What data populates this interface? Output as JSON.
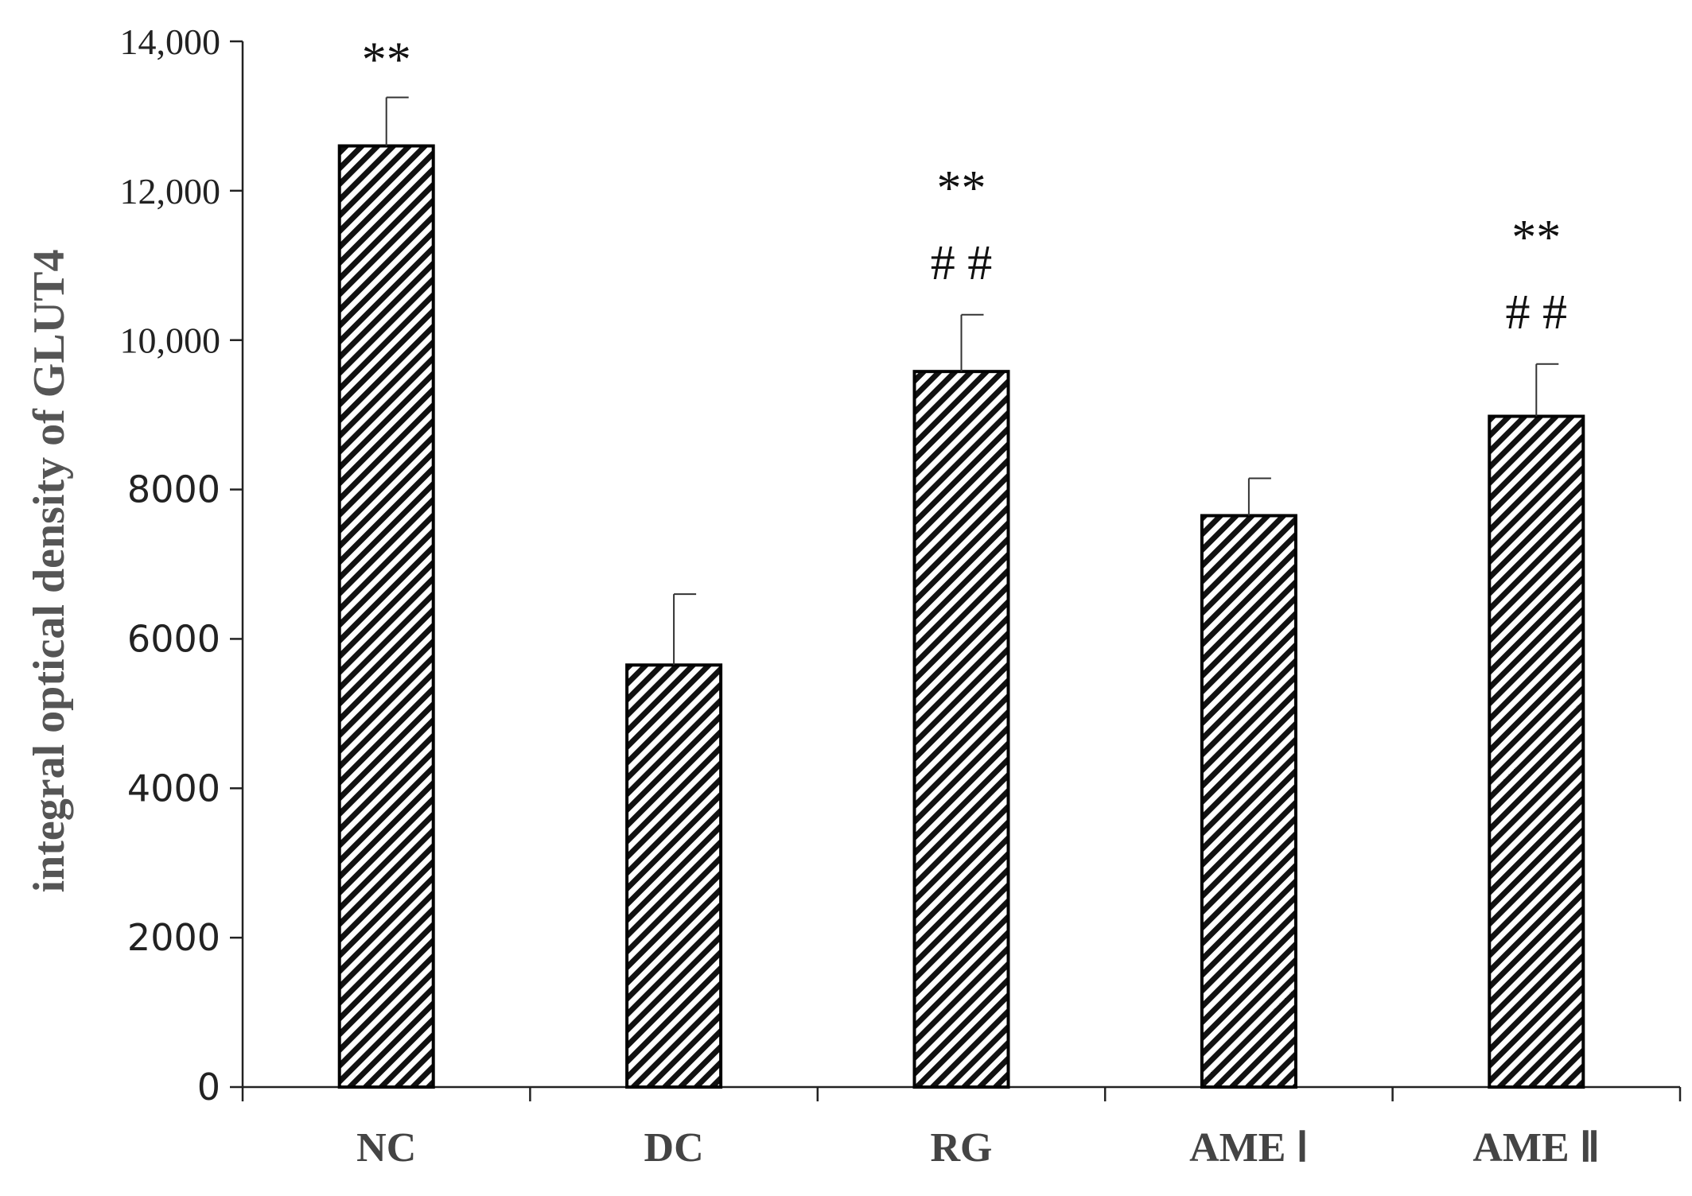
{
  "chart_data": {
    "type": "bar",
    "title": "",
    "xlabel": "",
    "ylabel": "integral optical density of GLUT4",
    "ylim": [
      0,
      14000
    ],
    "yticks": [
      0,
      2000,
      4000,
      6000,
      8000,
      10000,
      12000,
      14000
    ],
    "ytick_labels": [
      "0",
      "2000",
      "4000",
      "6000",
      "8000",
      "10,000",
      "12,000",
      "14,000"
    ],
    "categories": [
      "NC",
      "DC",
      "RG",
      "AME Ⅰ",
      "AME Ⅱ"
    ],
    "values": [
      12600,
      5650,
      9580,
      7650,
      8980
    ],
    "errors": [
      650,
      950,
      760,
      500,
      700
    ],
    "annotations": [
      [
        "**"
      ],
      [],
      [
        "**",
        "# #"
      ],
      [],
      [
        "**",
        "# #"
      ]
    ],
    "bar_fill": "diagonal-hatch",
    "bar_color": "#000000",
    "grid": false,
    "legend": "none"
  }
}
